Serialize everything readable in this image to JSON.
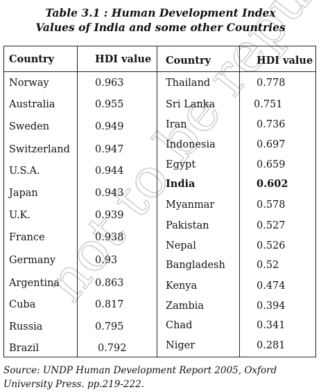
{
  "title": {
    "line1": "Table 3.1 : Human Development Index",
    "line2": "Values of India and some other Countries"
  },
  "headers": {
    "country": "Country",
    "hdi": "HDI value"
  },
  "left_rows": [
    {
      "country": "Norway",
      "hdi": "0.963"
    },
    {
      "country": "Australia",
      "hdi": "0.955"
    },
    {
      "country": "Sweden",
      "hdi": "0.949"
    },
    {
      "country": "Switzerland",
      "hdi": "0.947"
    },
    {
      "country": "U.S.A.",
      "hdi": "0.944"
    },
    {
      "country": "Japan",
      "hdi": "0.943"
    },
    {
      "country": "U.K.",
      "hdi": "0.939"
    },
    {
      "country": "France",
      "hdi": "0.938"
    },
    {
      "country": "Germany",
      "hdi": "0.93"
    },
    {
      "country": "Argentina",
      "hdi": "0.863"
    },
    {
      "country": "Cuba",
      "hdi": "0.817"
    },
    {
      "country": "Russia",
      "hdi": "0.795"
    },
    {
      "country": "Brazil",
      "hdi": "0.792"
    }
  ],
  "right_rows": [
    {
      "country": "Thailand",
      "hdi": "0.778"
    },
    {
      "country": "Sri Lanka",
      "hdi": "0.751"
    },
    {
      "country": "Iran",
      "hdi": "0.736"
    },
    {
      "country": "Indonesia",
      "hdi": "0.697"
    },
    {
      "country": "Egypt",
      "hdi": "0.659"
    },
    {
      "country": "India",
      "hdi": "0.602",
      "bold": true
    },
    {
      "country": "Myanmar",
      "hdi": "0.578"
    },
    {
      "country": "Pakistan",
      "hdi": "0.527"
    },
    {
      "country": "Nepal",
      "hdi": "0.526"
    },
    {
      "country": "Bangladesh",
      "hdi": "0.52"
    },
    {
      "country": "Kenya",
      "hdi": "0.474"
    },
    {
      "country": "Zambia",
      "hdi": "0.394"
    },
    {
      "country": "Chad",
      "hdi": "0.341"
    },
    {
      "country": "Niger",
      "hdi": "0.281"
    }
  ],
  "source": "Source: UNDP Human Development Report 2005, Oxford University Press. pp.219-222.",
  "watermark": "not to be republished © NCERT"
}
